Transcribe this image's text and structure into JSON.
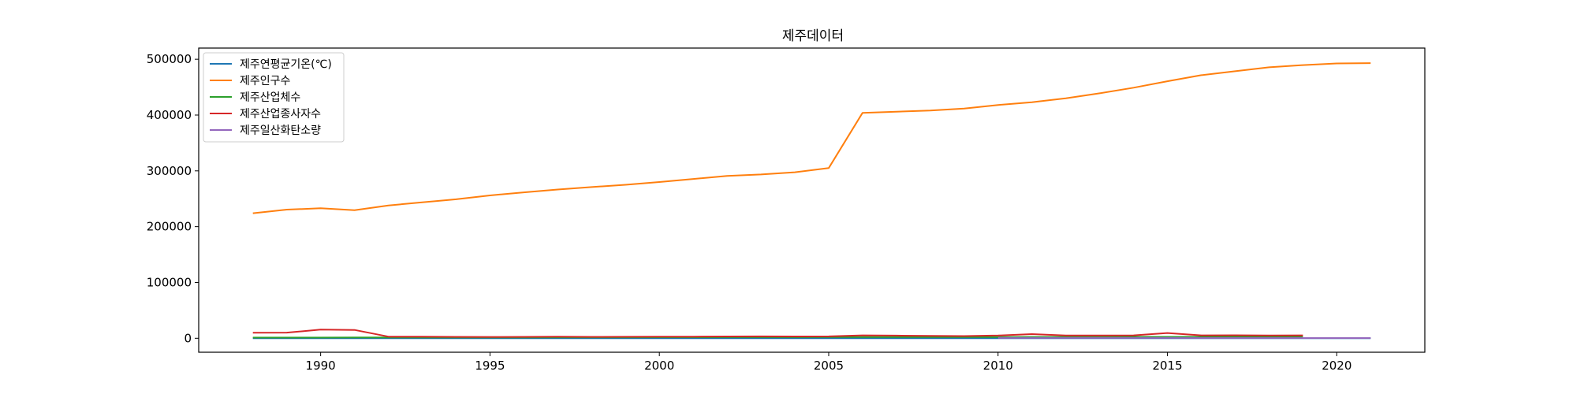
{
  "chart_data": {
    "type": "line",
    "title": "제주데이터",
    "xlabel": "",
    "ylabel": "",
    "xlim": [
      1986.4,
      2022.6
    ],
    "ylim": [
      -25000,
      520000
    ],
    "xticks": [
      1990,
      1995,
      2000,
      2005,
      2010,
      2015,
      2020
    ],
    "yticks": [
      0,
      100000,
      200000,
      300000,
      400000,
      500000
    ],
    "legend_position": "top-left",
    "grid": false,
    "series": [
      {
        "name": "제주연평균기온(℃)",
        "color": "#1f77b4",
        "points": [
          [
            1988,
            15.3
          ],
          [
            1989,
            16
          ],
          [
            1990,
            16.5
          ],
          [
            1991,
            15.8
          ],
          [
            1992,
            15.9
          ],
          [
            1993,
            15.4
          ],
          [
            1994,
            16.8
          ],
          [
            1995,
            15.6
          ],
          [
            1996,
            15.7
          ],
          [
            1997,
            16
          ],
          [
            1998,
            17
          ],
          [
            1999,
            16.4
          ],
          [
            2000,
            16.2
          ],
          [
            2001,
            16.2
          ],
          [
            2002,
            16.3
          ],
          [
            2003,
            16.3
          ],
          [
            2004,
            16.9
          ],
          [
            2005,
            15.9
          ],
          [
            2006,
            16.5
          ],
          [
            2007,
            17
          ],
          [
            2008,
            16.8
          ],
          [
            2009,
            17
          ],
          [
            2010,
            16.6
          ],
          [
            2011,
            16.2
          ],
          [
            2012,
            16.3
          ],
          [
            2013,
            16.8
          ],
          [
            2014,
            16.7
          ],
          [
            2015,
            16.6
          ],
          [
            2016,
            17.3
          ],
          [
            2017,
            17.1
          ],
          [
            2018,
            16.6
          ],
          [
            2019,
            17.3
          ],
          [
            2020,
            16.9
          ],
          [
            2021,
            17.2
          ]
        ]
      },
      {
        "name": "제주인구수",
        "color": "#ff7f0e",
        "points": [
          [
            1988,
            224000
          ],
          [
            1989,
            230500
          ],
          [
            1990,
            233000
          ],
          [
            1991,
            229500
          ],
          [
            1992,
            238000
          ],
          [
            1993,
            243500
          ],
          [
            1994,
            249000
          ],
          [
            1995,
            256000
          ],
          [
            1996,
            261500
          ],
          [
            1997,
            266500
          ],
          [
            1998,
            271000
          ],
          [
            1999,
            275000
          ],
          [
            2000,
            280000
          ],
          [
            2001,
            285500
          ],
          [
            2002,
            291000
          ],
          [
            2003,
            293500
          ],
          [
            2004,
            297500
          ],
          [
            2005,
            305000
          ],
          [
            2006,
            404000
          ],
          [
            2007,
            406000
          ],
          [
            2008,
            408000
          ],
          [
            2009,
            411500
          ],
          [
            2010,
            418000
          ],
          [
            2011,
            423000
          ],
          [
            2012,
            430000
          ],
          [
            2013,
            439000
          ],
          [
            2014,
            449000
          ],
          [
            2015,
            460500
          ],
          [
            2016,
            471500
          ],
          [
            2017,
            478500
          ],
          [
            2018,
            485500
          ],
          [
            2019,
            489500
          ],
          [
            2020,
            492500
          ],
          [
            2021,
            493000
          ]
        ]
      },
      {
        "name": "제주산업체수",
        "color": "#2ca02c",
        "points": [
          [
            1988,
            1200
          ],
          [
            1989,
            1250
          ],
          [
            1990,
            1300
          ],
          [
            1991,
            1350
          ],
          [
            1992,
            1400
          ],
          [
            1993,
            1450
          ],
          [
            1994,
            1500
          ],
          [
            1995,
            1550
          ],
          [
            1996,
            1600
          ],
          [
            1997,
            1650
          ],
          [
            1998,
            1700
          ],
          [
            1999,
            1750
          ],
          [
            2000,
            1800
          ],
          [
            2001,
            1850
          ],
          [
            2002,
            1900
          ],
          [
            2003,
            1950
          ],
          [
            2004,
            2000
          ],
          [
            2005,
            2050
          ],
          [
            2006,
            2100
          ],
          [
            2007,
            2150
          ],
          [
            2008,
            2200
          ],
          [
            2009,
            2250
          ],
          [
            2010,
            2300
          ],
          [
            2011,
            2350
          ],
          [
            2012,
            2400
          ],
          [
            2013,
            2450
          ],
          [
            2014,
            2500
          ],
          [
            2015,
            2550
          ],
          [
            2016,
            2600
          ],
          [
            2017,
            2650
          ],
          [
            2018,
            2700
          ],
          [
            2019,
            2750
          ]
        ]
      },
      {
        "name": "제주산업종사자수",
        "color": "#d62728",
        "points": [
          [
            1988,
            10000
          ],
          [
            1989,
            10200
          ],
          [
            1990,
            15500
          ],
          [
            1991,
            15000
          ],
          [
            1992,
            3000
          ],
          [
            1993,
            3000
          ],
          [
            1994,
            2600
          ],
          [
            1995,
            2400
          ],
          [
            1996,
            2500
          ],
          [
            1997,
            2800
          ],
          [
            1998,
            2600
          ],
          [
            1999,
            2700
          ],
          [
            2000,
            2900
          ],
          [
            2001,
            3000
          ],
          [
            2002,
            3200
          ],
          [
            2003,
            3400
          ],
          [
            2004,
            3300
          ],
          [
            2005,
            3400
          ],
          [
            2006,
            5200
          ],
          [
            2007,
            4800
          ],
          [
            2008,
            4300
          ],
          [
            2009,
            4000
          ],
          [
            2010,
            5000
          ],
          [
            2011,
            7500
          ],
          [
            2012,
            5000
          ],
          [
            2013,
            5000
          ],
          [
            2014,
            5200
          ],
          [
            2015,
            9500
          ],
          [
            2016,
            5200
          ],
          [
            2017,
            5300
          ],
          [
            2018,
            5000
          ],
          [
            2019,
            5200
          ]
        ]
      },
      {
        "name": "제주일산화탄소량",
        "color": "#9467bd",
        "points": [
          [
            2010,
            600
          ],
          [
            2011,
            600
          ],
          [
            2012,
            550
          ],
          [
            2013,
            550
          ],
          [
            2014,
            500
          ],
          [
            2015,
            500
          ],
          [
            2016,
            450
          ],
          [
            2017,
            450
          ],
          [
            2018,
            400
          ],
          [
            2019,
            400
          ],
          [
            2020,
            400
          ],
          [
            2021,
            400
          ]
        ]
      }
    ]
  }
}
